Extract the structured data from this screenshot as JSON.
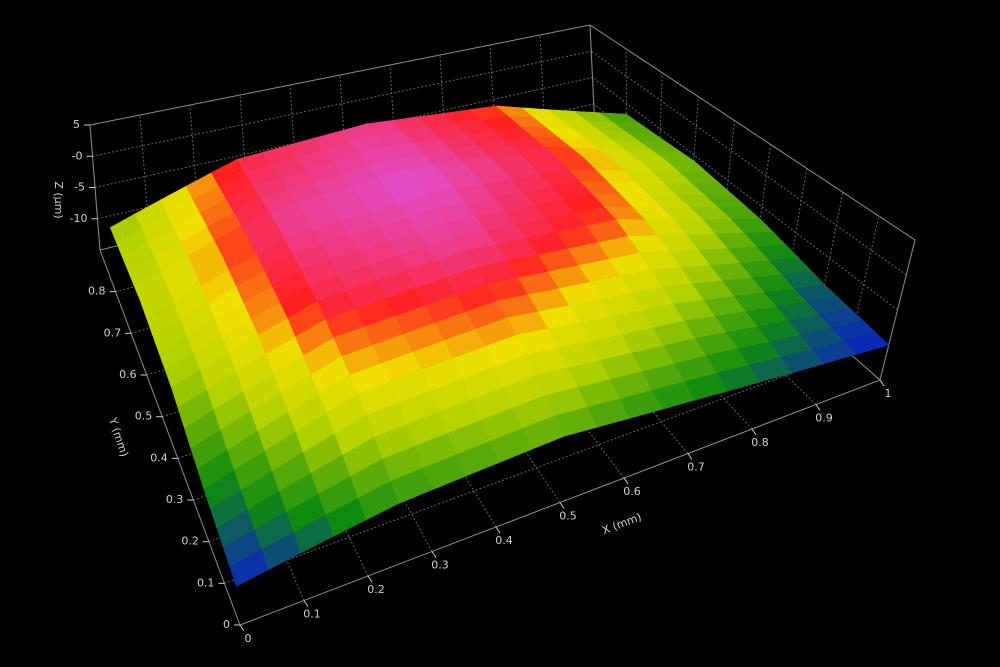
{
  "chart_data": {
    "type": "surface3d",
    "x_label": "X (mm)",
    "y_label": "Y (mm)",
    "z_label": "Z (µm)",
    "x": [
      0,
      0.25,
      0.5,
      0.75,
      1
    ],
    "y": [
      0,
      0.2,
      0.4,
      0.6,
      0.8
    ],
    "z": [
      [
        -10,
        -7,
        -6,
        -8,
        -10
      ],
      [
        -8,
        -2,
        -1,
        -4,
        -9
      ],
      [
        -5,
        1,
        2,
        0,
        -7
      ],
      [
        -4,
        2,
        3,
        1,
        -6
      ],
      [
        -5,
        1,
        2,
        0,
        -7
      ]
    ],
    "xlim": [
      0,
      1
    ],
    "ylim": [
      0,
      0.9
    ],
    "zlim": [
      -15,
      5
    ],
    "xticks": [
      0,
      0.1,
      0.2,
      0.3,
      0.4,
      0.5,
      0.6,
      0.7,
      0.8,
      0.9,
      1
    ],
    "yticks": [
      0,
      0.1,
      0.2,
      0.3,
      0.4,
      0.5,
      0.6,
      0.7,
      0.8
    ],
    "zticks": [
      5,
      {
        "value": 0,
        "label": "-0"
      },
      -5,
      -10
    ],
    "grid": true,
    "colorscale": [
      {
        "value": -10,
        "color": "#0a1ad0"
      },
      {
        "value": -7.5,
        "color": "#0e8a10"
      },
      {
        "value": -4,
        "color": "#b8d400"
      },
      {
        "value": -1.5,
        "color": "#f0e000"
      },
      {
        "value": 0.5,
        "color": "#ff2020"
      },
      {
        "value": 3,
        "color": "#e050d0"
      }
    ]
  }
}
